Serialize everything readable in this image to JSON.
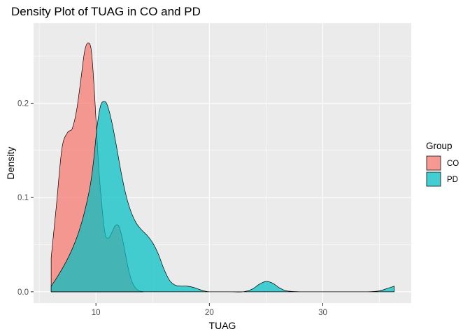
{
  "chart_data": {
    "type": "area",
    "title": "Density Plot of TUAG in CO and PD",
    "xlabel": "TUAG",
    "ylabel": "Density",
    "xlim": [
      4.5,
      37.8
    ],
    "ylim": [
      -0.012,
      0.285
    ],
    "x_ticks": [
      10,
      20,
      30
    ],
    "x_tick_labels": [
      "10",
      "20",
      "30"
    ],
    "y_ticks": [
      0.0,
      0.1,
      0.2
    ],
    "y_tick_labels": [
      "0.0",
      "0.1",
      "0.2"
    ],
    "grid": true,
    "legend": {
      "title": "Group",
      "position": "right"
    },
    "series": [
      {
        "name": "CO",
        "color": "#F8766D",
        "x": [
          6.05,
          6.5,
          7.0,
          7.5,
          7.9,
          8.3,
          8.7,
          9.0,
          9.3,
          9.6,
          9.9,
          10.2,
          10.5,
          10.8,
          11.1,
          11.4,
          11.7,
          12.0,
          12.3,
          12.6,
          12.9,
          13.2,
          13.5,
          13.8,
          14.2
        ],
        "y": [
          0.036,
          0.09,
          0.152,
          0.169,
          0.173,
          0.193,
          0.228,
          0.255,
          0.264,
          0.255,
          0.205,
          0.14,
          0.094,
          0.062,
          0.057,
          0.063,
          0.07,
          0.07,
          0.058,
          0.04,
          0.022,
          0.01,
          0.004,
          0.001,
          0.0
        ]
      },
      {
        "name": "PD",
        "color": "#00BFC4",
        "x": [
          6.05,
          6.5,
          7.0,
          7.5,
          8.0,
          8.5,
          9.0,
          9.5,
          9.8,
          10.1,
          10.4,
          10.7,
          11.0,
          11.4,
          11.8,
          12.2,
          12.6,
          13.0,
          13.5,
          14.0,
          14.5,
          15.0,
          15.5,
          16.0,
          16.5,
          17.0,
          17.5,
          18.0,
          18.5,
          19.0,
          19.5,
          20.0,
          21.0,
          22.0,
          23.0,
          23.8,
          24.4,
          25.0,
          25.6,
          26.2,
          26.8,
          28.0,
          30.0,
          32.0,
          34.0,
          35.0,
          35.8,
          36.3
        ],
        "y": [
          0.006,
          0.014,
          0.024,
          0.035,
          0.048,
          0.064,
          0.085,
          0.113,
          0.14,
          0.175,
          0.197,
          0.202,
          0.198,
          0.18,
          0.155,
          0.128,
          0.105,
          0.088,
          0.074,
          0.066,
          0.06,
          0.052,
          0.04,
          0.024,
          0.012,
          0.007,
          0.006,
          0.006,
          0.005,
          0.003,
          0.001,
          0.0,
          0.0,
          0.0,
          0.0,
          0.003,
          0.008,
          0.011,
          0.009,
          0.004,
          0.001,
          0.0,
          0.0,
          0.0,
          0.0,
          0.001,
          0.004,
          0.006
        ]
      }
    ]
  }
}
